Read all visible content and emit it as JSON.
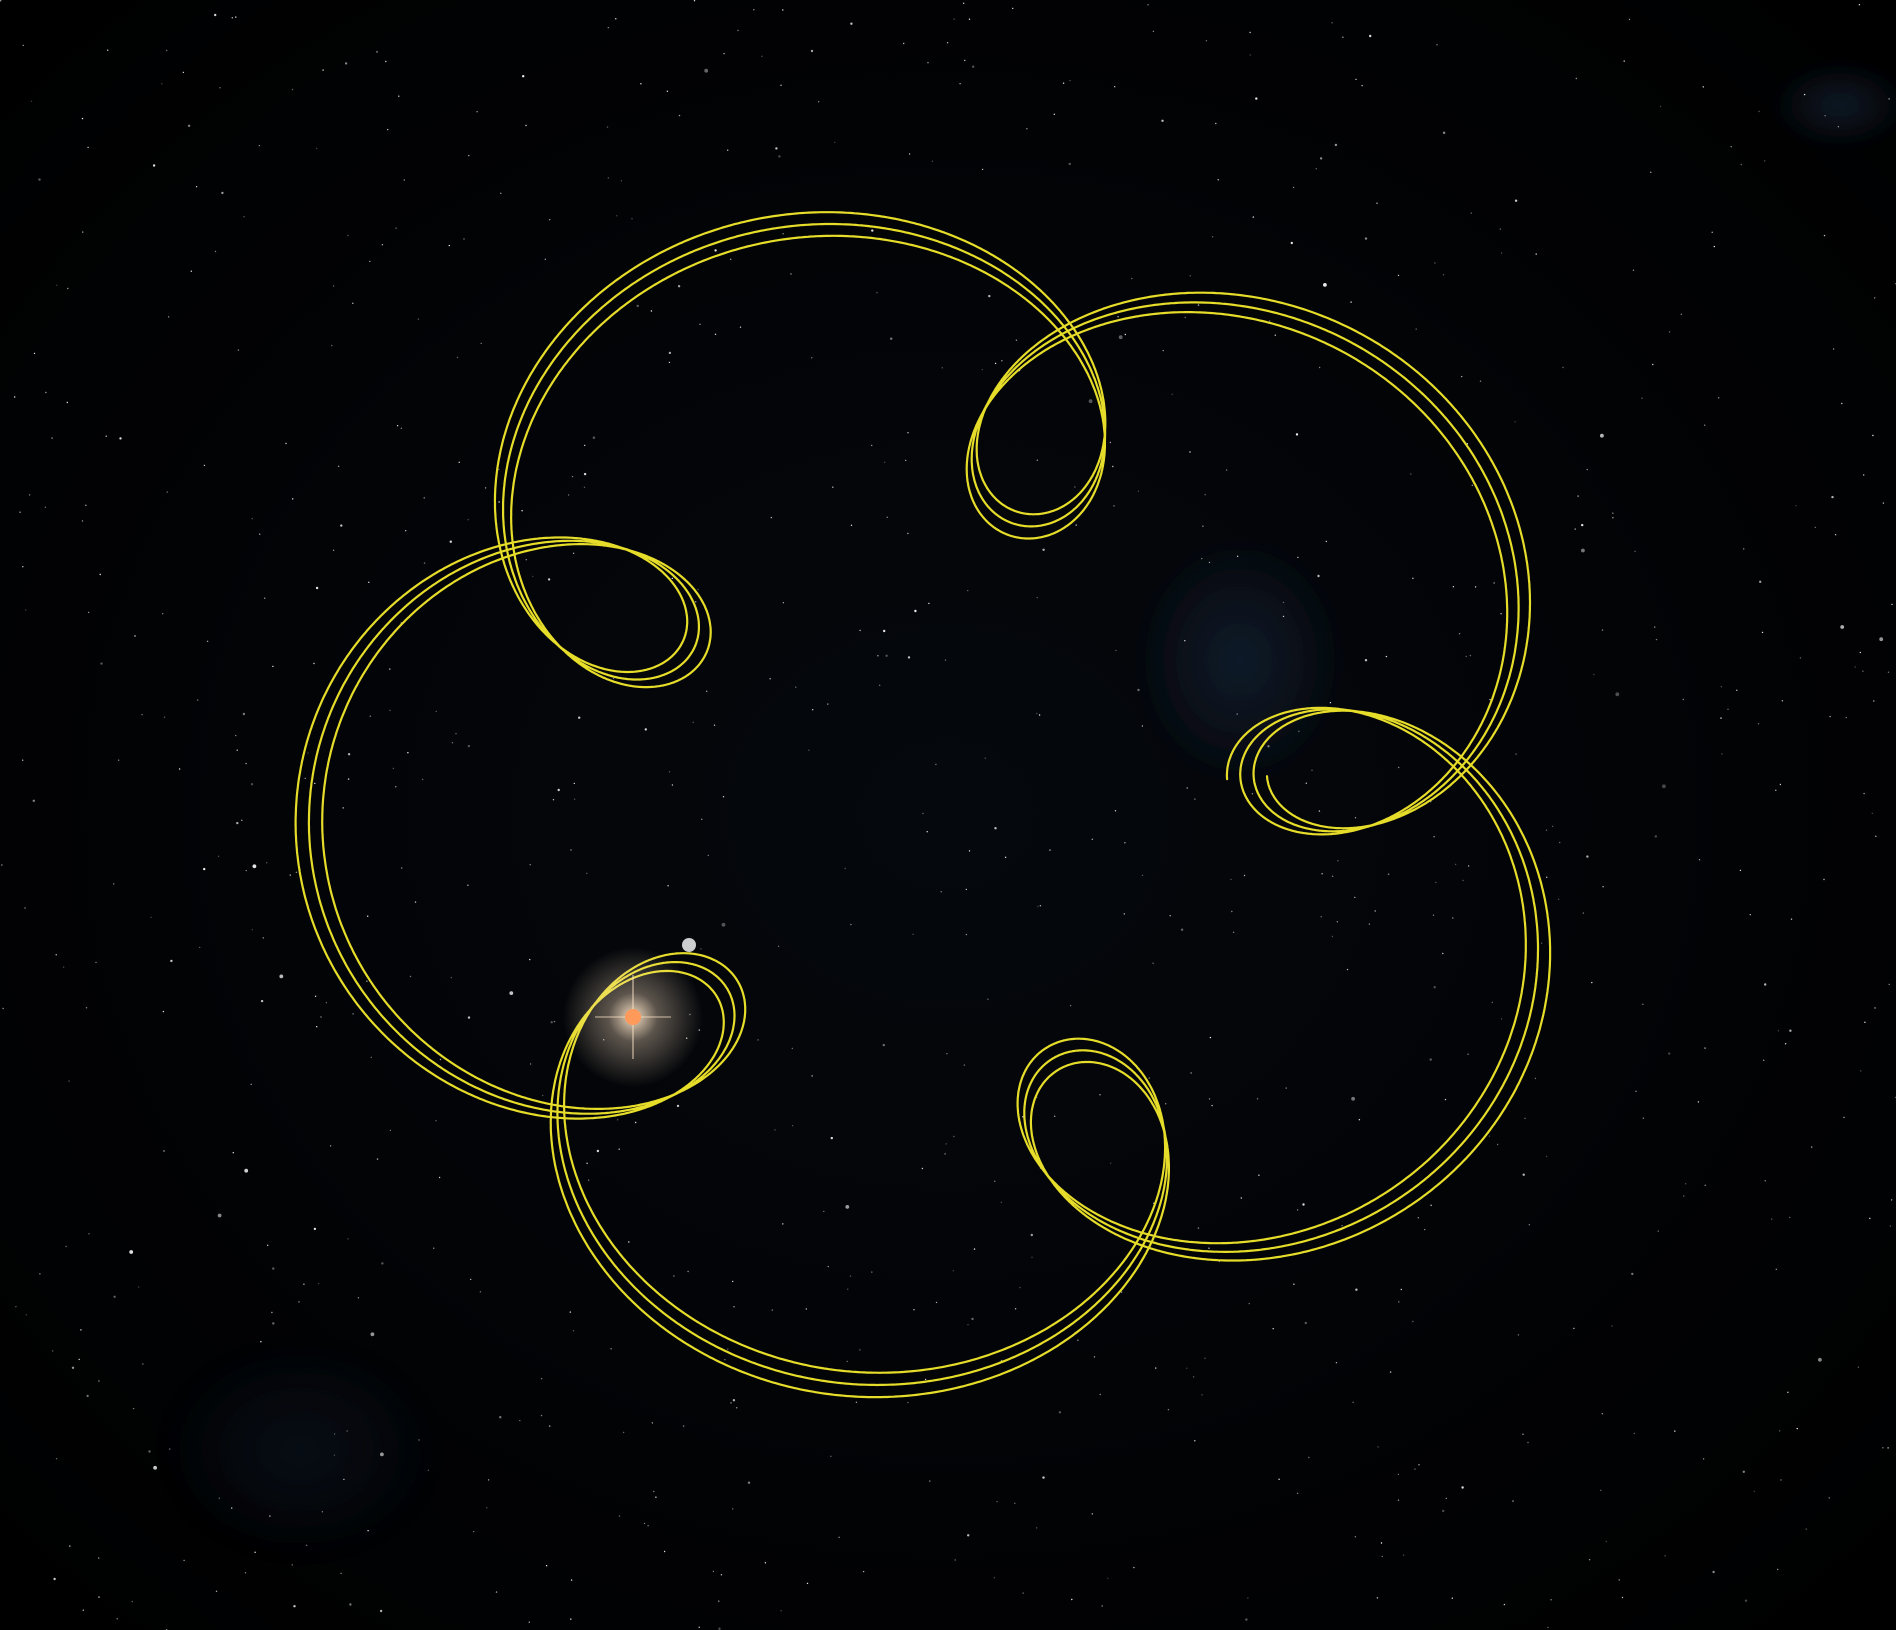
{
  "scene": {
    "background_color": "#000000",
    "orbit_color": "#e6dc2a",
    "star_color": "#ffffff",
    "sun_core_color": "#ff9a5a",
    "sun_glow_color": "#ffe6c8",
    "nebula_color": "#1c2c44",
    "orbit_lobes": 5,
    "orbit_rotations": 3
  }
}
